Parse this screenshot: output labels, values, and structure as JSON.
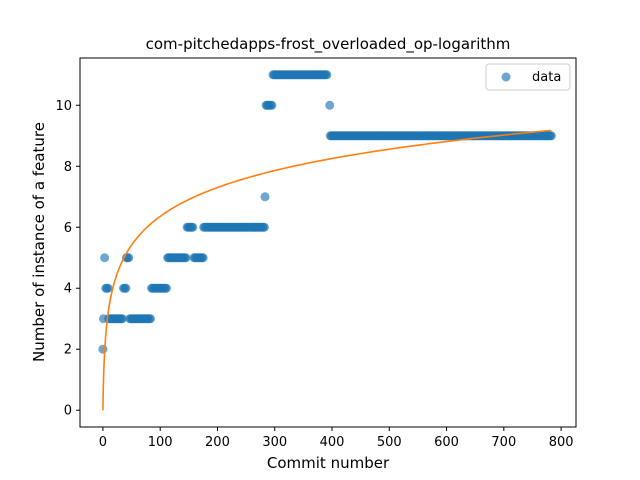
{
  "chart_data": {
    "type": "scatter",
    "title": "com-pitchedapps-frost_overloaded_op-logarithm",
    "xlabel": "Commit number",
    "ylabel": "Number of instance of a feature",
    "xlim": [
      -40,
      826
    ],
    "ylim": [
      -0.55,
      11.55
    ],
    "xticks": [
      0,
      100,
      200,
      300,
      400,
      500,
      600,
      700,
      800
    ],
    "yticks": [
      0,
      2,
      4,
      6,
      8,
      10
    ],
    "legend": {
      "position": "top-right",
      "entries": [
        "data"
      ]
    },
    "colors": {
      "data": "#1f77b4",
      "fit": "#ff7f0e"
    },
    "series": [
      {
        "name": "data",
        "kind": "scatter",
        "segments": [
          {
            "x_start": 0,
            "x_end": 0,
            "step": 1,
            "y": 2
          },
          {
            "x_start": 1,
            "x_end": 1,
            "step": 1,
            "y": 3
          },
          {
            "x_start": 3,
            "x_end": 3,
            "step": 1,
            "y": 5
          },
          {
            "x_start": 5,
            "x_end": 9,
            "step": 2,
            "y": 4
          },
          {
            "x_start": 10,
            "x_end": 35,
            "step": 2,
            "y": 3
          },
          {
            "x_start": 36,
            "x_end": 40,
            "step": 2,
            "y": 4
          },
          {
            "x_start": 41,
            "x_end": 46,
            "step": 2,
            "y": 5
          },
          {
            "x_start": 47,
            "x_end": 84,
            "step": 2,
            "y": 3
          },
          {
            "x_start": 85,
            "x_end": 112,
            "step": 2,
            "y": 4
          },
          {
            "x_start": 113,
            "x_end": 146,
            "step": 2,
            "y": 5
          },
          {
            "x_start": 147,
            "x_end": 158,
            "step": 2,
            "y": 6
          },
          {
            "x_start": 159,
            "x_end": 175,
            "step": 2,
            "y": 5
          },
          {
            "x_start": 176,
            "x_end": 282,
            "step": 2,
            "y": 6
          },
          {
            "x_start": 283,
            "x_end": 283,
            "step": 1,
            "y": 7
          },
          {
            "x_start": 285,
            "x_end": 296,
            "step": 2,
            "y": 10
          },
          {
            "x_start": 297,
            "x_end": 392,
            "step": 2,
            "y": 11
          },
          {
            "x_start": 396,
            "x_end": 396,
            "step": 1,
            "y": 10
          },
          {
            "x_start": 397,
            "x_end": 783,
            "step": 2,
            "y": 9
          }
        ]
      },
      {
        "name": "",
        "kind": "line",
        "fit": {
          "model": "logarithm",
          "a": 1.377,
          "b": 1.0,
          "x_start": 0.5,
          "x_end": 783
        }
      }
    ]
  }
}
